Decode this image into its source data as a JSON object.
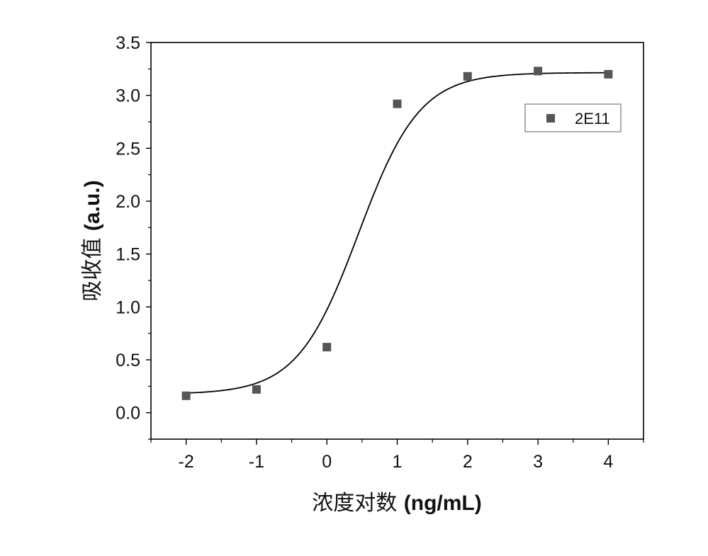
{
  "chart_data": {
    "type": "scatter",
    "title": "",
    "xlabel": "浓度对数 (ng/mL)",
    "xlabel_parts": [
      "浓度对数 ",
      "(ng/mL)"
    ],
    "ylabel": "吸收值 (a.u.)",
    "ylabel_parts": [
      "吸收值 ",
      "(a.u.)"
    ],
    "xlim": [
      -2.5,
      4.5
    ],
    "ylim": [
      -0.25,
      3.5
    ],
    "xticks": [
      -2,
      -1,
      0,
      1,
      2,
      3,
      4
    ],
    "xtick_labels": [
      "-2",
      "-1",
      "0",
      "1",
      "2",
      "3",
      "4"
    ],
    "yticks": [
      0.0,
      0.5,
      1.0,
      1.5,
      2.0,
      2.5,
      3.0,
      3.5
    ],
    "ytick_labels": [
      "0.0",
      "0.5",
      "1.0",
      "1.5",
      "2.0",
      "2.5",
      "3.0",
      "3.5"
    ],
    "grid": false,
    "legend_position": "top-right",
    "series": [
      {
        "name": "2E11",
        "marker": "square",
        "color": "#555555",
        "x": [
          -2,
          -1,
          0,
          1,
          2,
          3,
          4
        ],
        "y": [
          0.16,
          0.22,
          0.62,
          2.92,
          3.18,
          3.23,
          3.2
        ]
      }
    ],
    "fit_curve": {
      "model": "logistic",
      "color": "#000000",
      "bottom": 0.175,
      "top": 3.215,
      "midpoint": 0.45,
      "slope": 2.3
    }
  }
}
